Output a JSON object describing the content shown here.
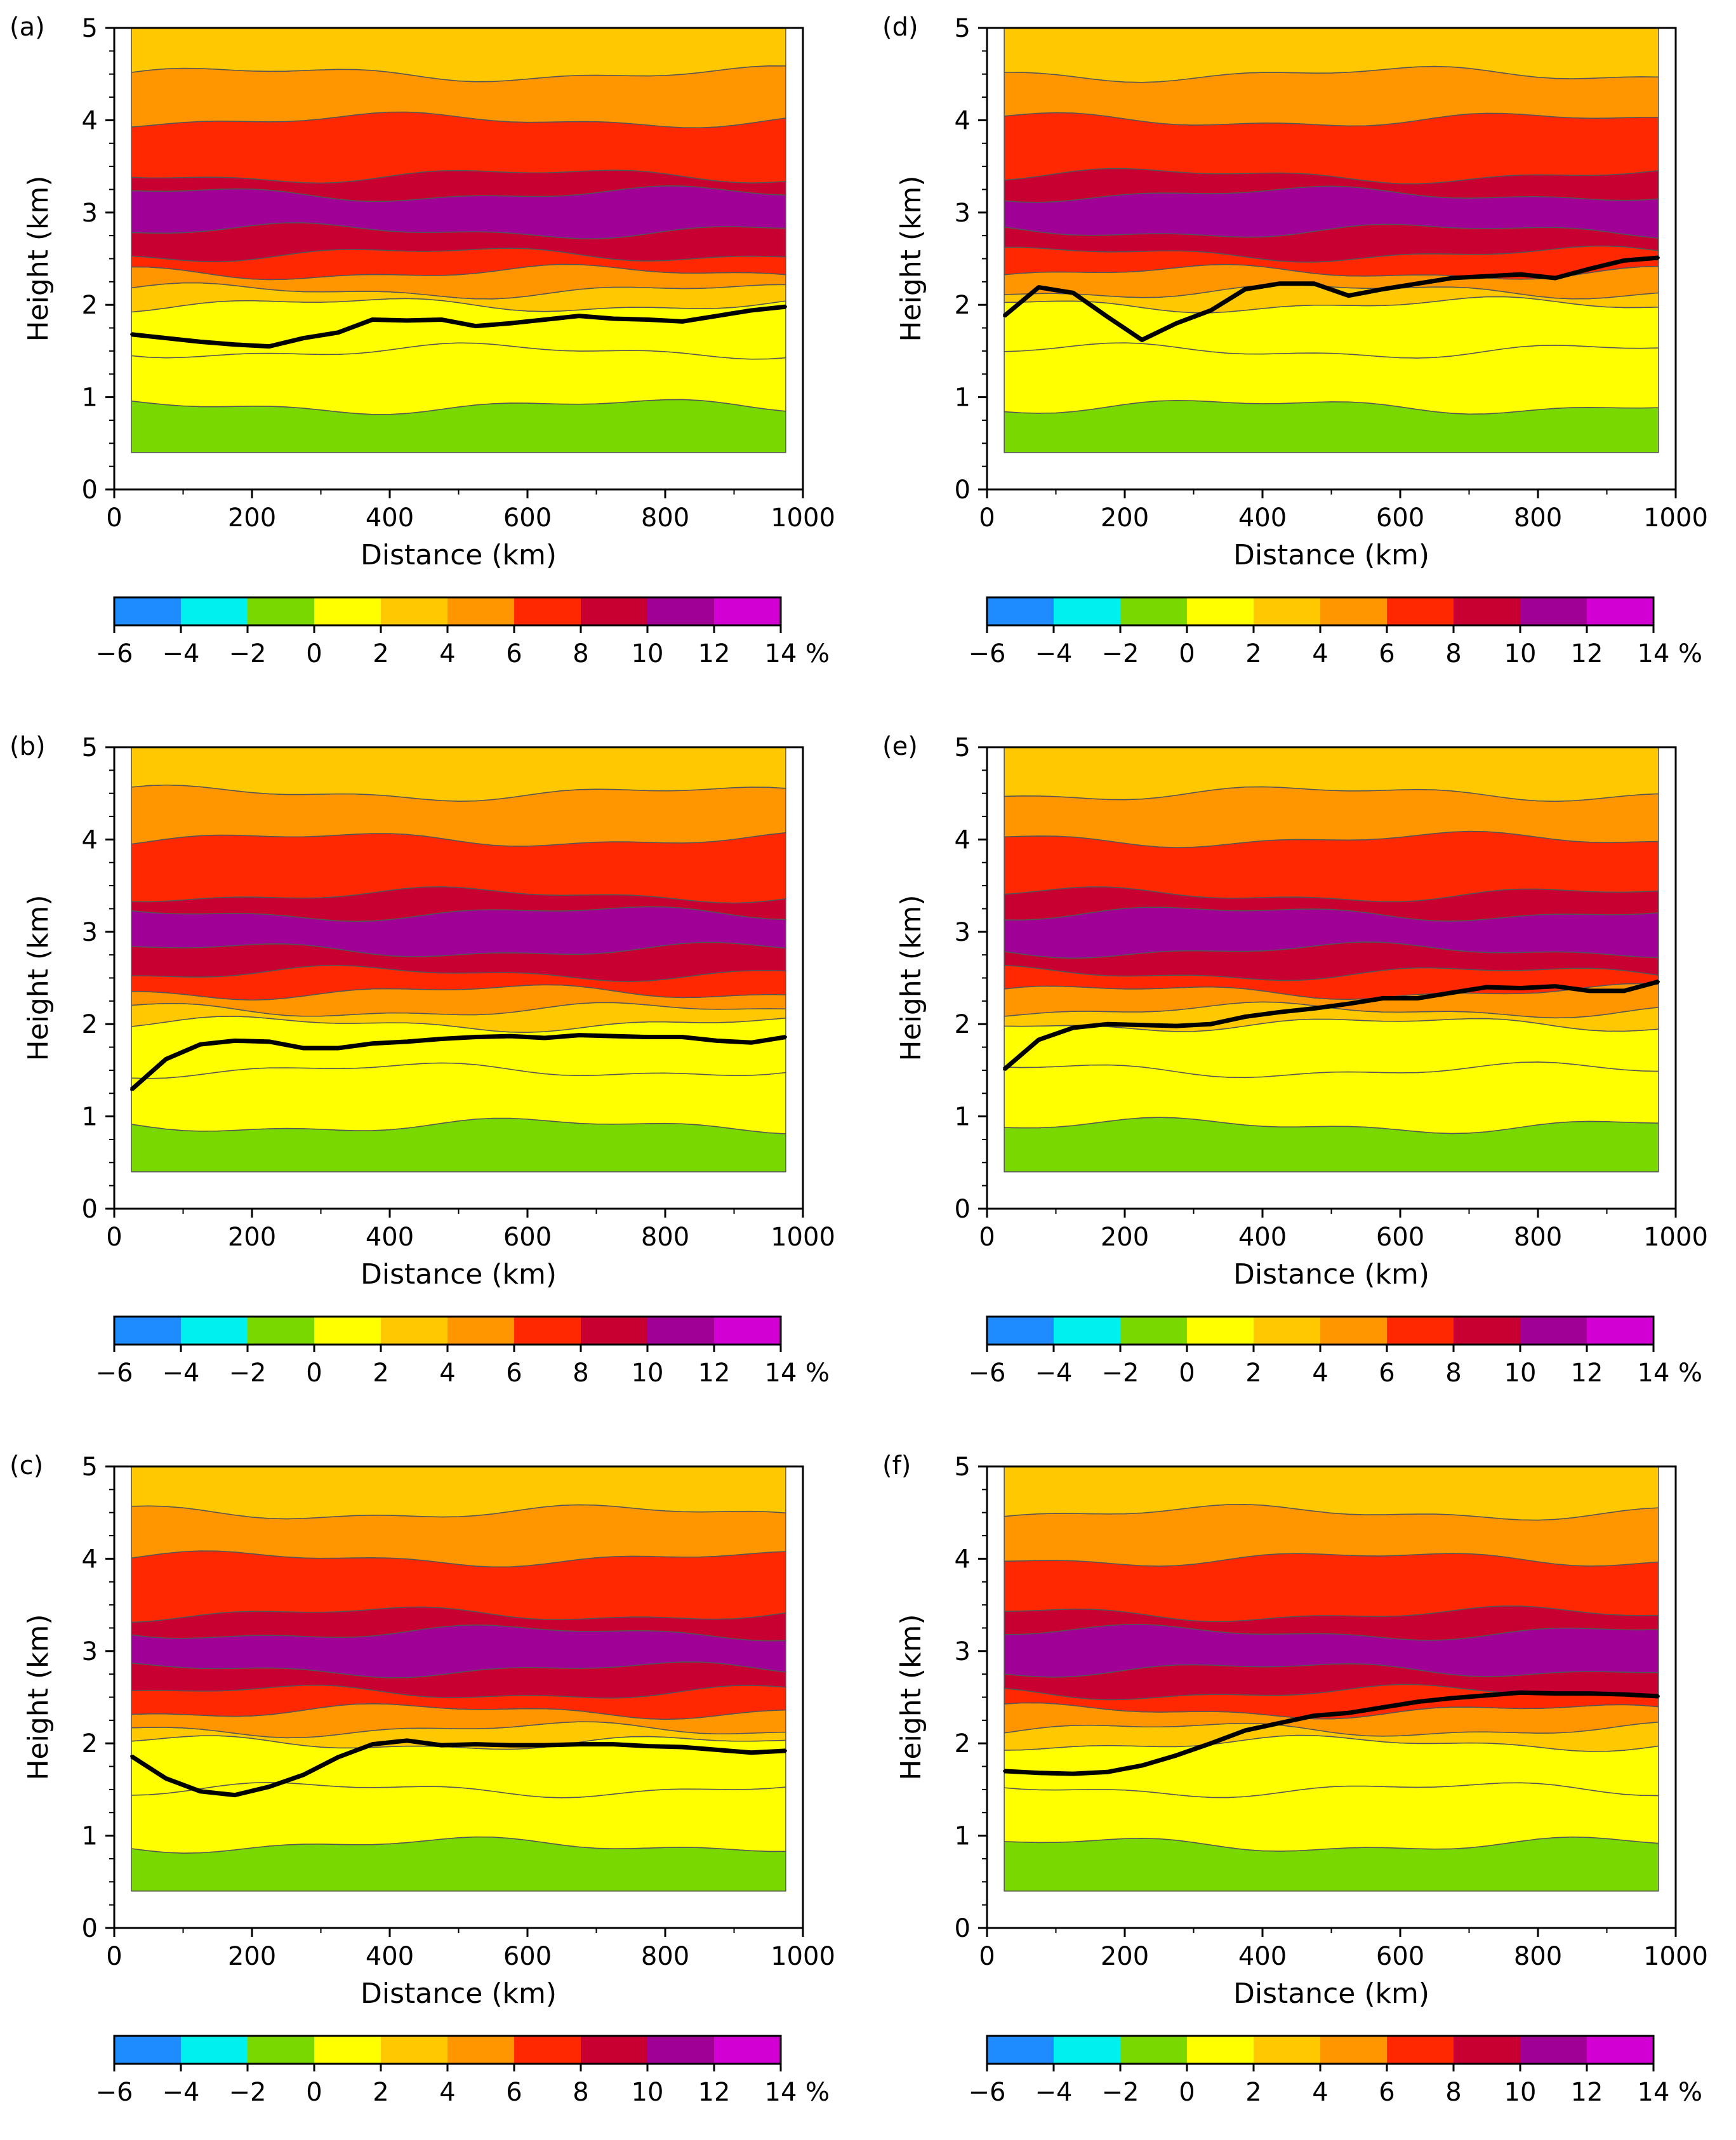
{
  "figure": {
    "colorbar": {
      "colors": [
        "#1e8cff",
        "#00f0f0",
        "#78d800",
        "#ffff00",
        "#ffc800",
        "#ff9600",
        "#ff2800",
        "#c80032",
        "#a00096",
        "#d200d2"
      ],
      "tick_labels": [
        "−6",
        "−4",
        "−2",
        "0",
        "2",
        "4",
        "6",
        "8",
        "10",
        "12",
        "14"
      ],
      "unit": "%"
    }
  },
  "chart_data": [
    {
      "type": "contour",
      "panel": "(a)",
      "xlabel": "Distance (km)",
      "ylabel": "Height (km)",
      "xlim": [
        0,
        1000
      ],
      "ylim": [
        0,
        5
      ],
      "xticks": [
        "0",
        "200",
        "400",
        "600",
        "800",
        "1000"
      ],
      "yticks": [
        "0",
        "1",
        "2",
        "3",
        "4",
        "5"
      ],
      "line": {
        "x": [
          25,
          75,
          125,
          175,
          225,
          275,
          325,
          375,
          425,
          475,
          525,
          575,
          625,
          675,
          725,
          775,
          825,
          875,
          925,
          975
        ],
        "y": [
          1.68,
          1.64,
          1.6,
          1.57,
          1.55,
          1.64,
          1.7,
          1.84,
          1.83,
          1.84,
          1.77,
          1.8,
          1.84,
          1.88,
          1.85,
          1.84,
          1.82,
          1.88,
          1.94,
          1.98
        ]
      },
      "bands": [
        {
          "y0": 0.4,
          "y1": 0.9,
          "level": -2
        },
        {
          "y0": 0.9,
          "y1": 1.5,
          "level": 0
        },
        {
          "y0": 1.5,
          "y1": 2.0,
          "level": 0
        },
        {
          "y0": 2.0,
          "y1": 2.15,
          "level": 2
        },
        {
          "y0": 2.15,
          "y1": 2.35,
          "level": 4
        },
        {
          "y0": 2.35,
          "y1": 2.55,
          "level": 6
        },
        {
          "y0": 2.55,
          "y1": 2.8,
          "level": 8
        },
        {
          "y0": 2.8,
          "y1": 3.2,
          "level": 10
        },
        {
          "y0": 3.2,
          "y1": 3.4,
          "level": 8
        },
        {
          "y0": 3.4,
          "y1": 4.0,
          "level": 6
        },
        {
          "y0": 4.0,
          "y1": 4.5,
          "level": 4
        },
        {
          "y0": 4.5,
          "y1": 5.0,
          "level": 2
        }
      ]
    },
    {
      "type": "contour",
      "panel": "(b)",
      "xlabel": "Distance (km)",
      "ylabel": "Height (km)",
      "xlim": [
        0,
        1000
      ],
      "ylim": [
        0,
        5
      ],
      "xticks": [
        "0",
        "200",
        "400",
        "600",
        "800",
        "1000"
      ],
      "yticks": [
        "0",
        "1",
        "2",
        "3",
        "4",
        "5"
      ],
      "line": {
        "x": [
          25,
          75,
          125,
          175,
          225,
          275,
          325,
          375,
          425,
          475,
          525,
          575,
          625,
          675,
          725,
          775,
          825,
          875,
          925,
          975
        ],
        "y": [
          1.29,
          1.62,
          1.78,
          1.82,
          1.81,
          1.74,
          1.74,
          1.79,
          1.81,
          1.84,
          1.86,
          1.87,
          1.85,
          1.88,
          1.87,
          1.86,
          1.86,
          1.82,
          1.8,
          1.86
        ]
      },
      "bands": [
        {
          "y0": 0.4,
          "y1": 0.9,
          "level": -2
        },
        {
          "y0": 0.9,
          "y1": 1.5,
          "level": 0
        },
        {
          "y0": 1.5,
          "y1": 2.0,
          "level": 0
        },
        {
          "y0": 2.0,
          "y1": 2.15,
          "level": 2
        },
        {
          "y0": 2.15,
          "y1": 2.35,
          "level": 4
        },
        {
          "y0": 2.35,
          "y1": 2.55,
          "level": 6
        },
        {
          "y0": 2.55,
          "y1": 2.8,
          "level": 8
        },
        {
          "y0": 2.8,
          "y1": 3.2,
          "level": 10
        },
        {
          "y0": 3.2,
          "y1": 3.4,
          "level": 8
        },
        {
          "y0": 3.4,
          "y1": 4.0,
          "level": 6
        },
        {
          "y0": 4.0,
          "y1": 4.5,
          "level": 4
        },
        {
          "y0": 4.5,
          "y1": 5.0,
          "level": 2
        }
      ]
    },
    {
      "type": "contour",
      "panel": "(c)",
      "xlabel": "Distance (km)",
      "ylabel": "Height (km)",
      "xlim": [
        0,
        1000
      ],
      "ylim": [
        0,
        5
      ],
      "xticks": [
        "0",
        "200",
        "400",
        "600",
        "800",
        "1000"
      ],
      "yticks": [
        "0",
        "1",
        "2",
        "3",
        "4",
        "5"
      ],
      "line": {
        "x": [
          25,
          75,
          125,
          175,
          225,
          275,
          325,
          375,
          425,
          475,
          525,
          575,
          625,
          675,
          725,
          775,
          825,
          875,
          925,
          975
        ],
        "y": [
          1.86,
          1.62,
          1.48,
          1.44,
          1.53,
          1.66,
          1.85,
          1.99,
          2.03,
          1.98,
          1.99,
          1.98,
          1.98,
          1.99,
          1.99,
          1.97,
          1.96,
          1.93,
          1.9,
          1.92
        ]
      },
      "bands": [
        {
          "y0": 0.4,
          "y1": 0.9,
          "level": -2
        },
        {
          "y0": 0.9,
          "y1": 1.5,
          "level": 0
        },
        {
          "y0": 1.5,
          "y1": 2.0,
          "level": 0
        },
        {
          "y0": 2.0,
          "y1": 2.15,
          "level": 2
        },
        {
          "y0": 2.15,
          "y1": 2.35,
          "level": 4
        },
        {
          "y0": 2.35,
          "y1": 2.55,
          "level": 6
        },
        {
          "y0": 2.55,
          "y1": 2.8,
          "level": 8
        },
        {
          "y0": 2.8,
          "y1": 3.2,
          "level": 10
        },
        {
          "y0": 3.2,
          "y1": 3.4,
          "level": 8
        },
        {
          "y0": 3.4,
          "y1": 4.0,
          "level": 6
        },
        {
          "y0": 4.0,
          "y1": 4.5,
          "level": 4
        },
        {
          "y0": 4.5,
          "y1": 5.0,
          "level": 2
        }
      ]
    },
    {
      "type": "contour",
      "panel": "(d)",
      "xlabel": "Distance (km)",
      "ylabel": "Height (km)",
      "xlim": [
        0,
        1000
      ],
      "ylim": [
        0,
        5
      ],
      "xticks": [
        "0",
        "200",
        "400",
        "600",
        "800",
        "1000"
      ],
      "yticks": [
        "0",
        "1",
        "2",
        "3",
        "4",
        "5"
      ],
      "line": {
        "x": [
          25,
          75,
          125,
          175,
          225,
          275,
          325,
          375,
          425,
          475,
          525,
          575,
          625,
          675,
          725,
          775,
          825,
          875,
          925,
          975
        ],
        "y": [
          1.88,
          2.19,
          2.13,
          1.87,
          1.62,
          1.8,
          1.94,
          2.17,
          2.23,
          2.23,
          2.1,
          2.17,
          2.23,
          2.29,
          2.31,
          2.33,
          2.29,
          2.39,
          2.48,
          2.51
        ]
      },
      "bands": [
        {
          "y0": 0.4,
          "y1": 0.9,
          "level": -2
        },
        {
          "y0": 0.9,
          "y1": 1.5,
          "level": 0
        },
        {
          "y0": 1.5,
          "y1": 2.0,
          "level": 0
        },
        {
          "y0": 2.0,
          "y1": 2.15,
          "level": 2
        },
        {
          "y0": 2.15,
          "y1": 2.35,
          "level": 4
        },
        {
          "y0": 2.35,
          "y1": 2.55,
          "level": 6
        },
        {
          "y0": 2.55,
          "y1": 2.8,
          "level": 8
        },
        {
          "y0": 2.8,
          "y1": 3.2,
          "level": 10
        },
        {
          "y0": 3.2,
          "y1": 3.4,
          "level": 8
        },
        {
          "y0": 3.4,
          "y1": 4.0,
          "level": 6
        },
        {
          "y0": 4.0,
          "y1": 4.5,
          "level": 4
        },
        {
          "y0": 4.5,
          "y1": 5.0,
          "level": 2
        }
      ]
    },
    {
      "type": "contour",
      "panel": "(e)",
      "xlabel": "Distance (km)",
      "ylabel": "Height (km)",
      "xlim": [
        0,
        1000
      ],
      "ylim": [
        0,
        5
      ],
      "xticks": [
        "0",
        "200",
        "400",
        "600",
        "800",
        "1000"
      ],
      "yticks": [
        "0",
        "1",
        "2",
        "3",
        "4",
        "5"
      ],
      "line": {
        "x": [
          25,
          75,
          125,
          175,
          225,
          275,
          325,
          375,
          425,
          475,
          525,
          575,
          625,
          675,
          725,
          775,
          825,
          875,
          925,
          975
        ],
        "y": [
          1.51,
          1.83,
          1.96,
          2.0,
          1.99,
          1.98,
          2.0,
          2.08,
          2.13,
          2.17,
          2.22,
          2.28,
          2.28,
          2.34,
          2.4,
          2.39,
          2.41,
          2.36,
          2.36,
          2.46
        ]
      },
      "bands": [
        {
          "y0": 0.4,
          "y1": 0.9,
          "level": -2
        },
        {
          "y0": 0.9,
          "y1": 1.5,
          "level": 0
        },
        {
          "y0": 1.5,
          "y1": 2.0,
          "level": 0
        },
        {
          "y0": 2.0,
          "y1": 2.15,
          "level": 2
        },
        {
          "y0": 2.15,
          "y1": 2.35,
          "level": 4
        },
        {
          "y0": 2.35,
          "y1": 2.55,
          "level": 6
        },
        {
          "y0": 2.55,
          "y1": 2.8,
          "level": 8
        },
        {
          "y0": 2.8,
          "y1": 3.2,
          "level": 10
        },
        {
          "y0": 3.2,
          "y1": 3.4,
          "level": 8
        },
        {
          "y0": 3.4,
          "y1": 4.0,
          "level": 6
        },
        {
          "y0": 4.0,
          "y1": 4.5,
          "level": 4
        },
        {
          "y0": 4.5,
          "y1": 5.0,
          "level": 2
        }
      ]
    },
    {
      "type": "contour",
      "panel": "(f)",
      "xlabel": "Distance (km)",
      "ylabel": "Height (km)",
      "xlim": [
        0,
        1000
      ],
      "ylim": [
        0,
        5
      ],
      "xticks": [
        "0",
        "200",
        "400",
        "600",
        "800",
        "1000"
      ],
      "yticks": [
        "0",
        "1",
        "2",
        "3",
        "4",
        "5"
      ],
      "line": {
        "x": [
          25,
          75,
          125,
          175,
          225,
          275,
          325,
          375,
          425,
          475,
          525,
          575,
          625,
          675,
          725,
          775,
          825,
          875,
          925,
          975
        ],
        "y": [
          1.7,
          1.68,
          1.67,
          1.69,
          1.76,
          1.87,
          2.0,
          2.14,
          2.22,
          2.3,
          2.33,
          2.39,
          2.45,
          2.49,
          2.52,
          2.55,
          2.54,
          2.54,
          2.53,
          2.51
        ]
      },
      "bands": [
        {
          "y0": 0.4,
          "y1": 0.9,
          "level": -2
        },
        {
          "y0": 0.9,
          "y1": 1.5,
          "level": 0
        },
        {
          "y0": 1.5,
          "y1": 2.0,
          "level": 0
        },
        {
          "y0": 2.0,
          "y1": 2.15,
          "level": 2
        },
        {
          "y0": 2.15,
          "y1": 2.35,
          "level": 4
        },
        {
          "y0": 2.35,
          "y1": 2.55,
          "level": 6
        },
        {
          "y0": 2.55,
          "y1": 2.8,
          "level": 8
        },
        {
          "y0": 2.8,
          "y1": 3.2,
          "level": 10
        },
        {
          "y0": 3.2,
          "y1": 3.4,
          "level": 8
        },
        {
          "y0": 3.4,
          "y1": 4.0,
          "level": 6
        },
        {
          "y0": 4.0,
          "y1": 4.5,
          "level": 4
        },
        {
          "y0": 4.5,
          "y1": 5.0,
          "level": 2
        }
      ]
    }
  ]
}
